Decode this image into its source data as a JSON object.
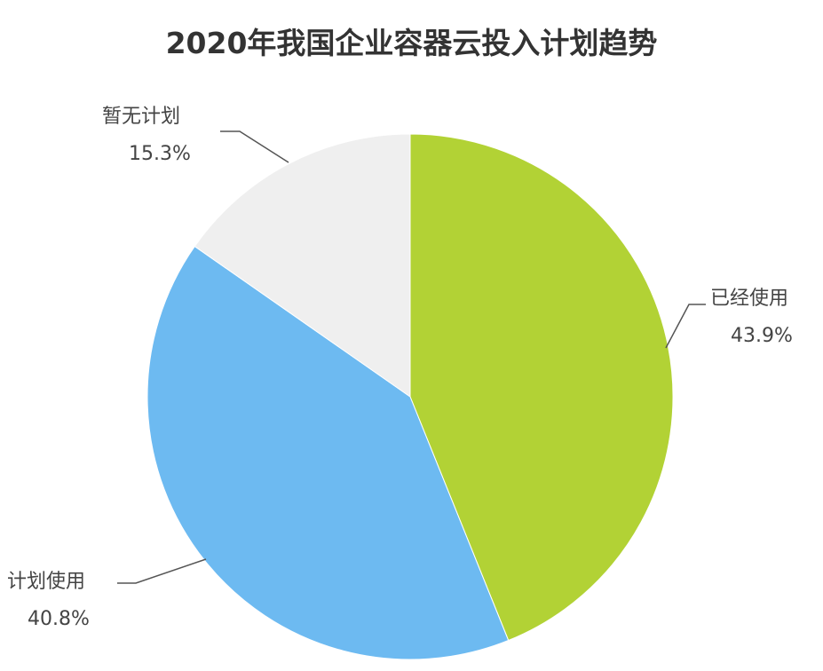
{
  "chart_data": {
    "type": "pie",
    "title": "2020年我国企业容器云投入计划趋势",
    "start_angle": "12 o'clock",
    "direction": "clockwise",
    "slices": [
      {
        "label": "已经使用",
        "value": 43.9,
        "value_label": "43.9%",
        "color": "#b2d235"
      },
      {
        "label": "计划使用",
        "value": 40.8,
        "value_label": "40.8%",
        "color": "#6dbaf1"
      },
      {
        "label": "暂无计划",
        "value": 15.3,
        "value_label": "15.3%",
        "color": "#efefef"
      }
    ]
  }
}
